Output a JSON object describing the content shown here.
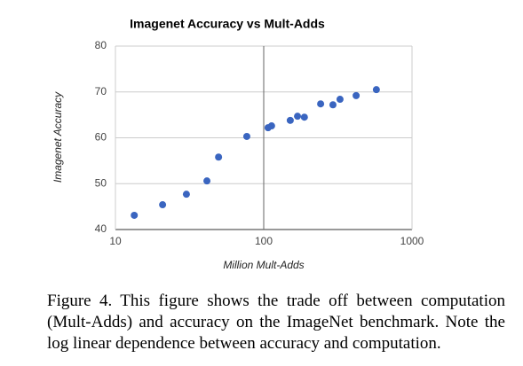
{
  "chart_data": {
    "type": "scatter",
    "title": "Imagenet Accuracy vs Mult-Adds",
    "x_label": "Million Mult-Adds",
    "y_label": "Imagenet Accuracy",
    "x_scale": "log",
    "grid": true,
    "color": "#3a65c0",
    "x": [
      13.4,
      20.8,
      30.1,
      41.4,
      49.6,
      76.9,
      107,
      113,
      151,
      169,
      188,
      242,
      293,
      327,
      420,
      575
    ],
    "values": [
      43.1,
      45.4,
      47.7,
      50.6,
      55.8,
      60.3,
      62.2,
      62.6,
      63.8,
      64.7,
      64.5,
      67.4,
      67.2,
      68.4,
      69.2,
      70.5
    ],
    "xlim": [
      10,
      1000
    ],
    "xticks": [
      10,
      100,
      1000
    ],
    "ylim": [
      40,
      80
    ],
    "yticks": [
      40,
      50,
      60,
      70,
      80
    ]
  },
  "caption": "Figure 4. This figure shows the trade off between computation (Mult-Adds) and accuracy on the ImageNet benchmark. Note the log linear dependence between accuracy and computation."
}
